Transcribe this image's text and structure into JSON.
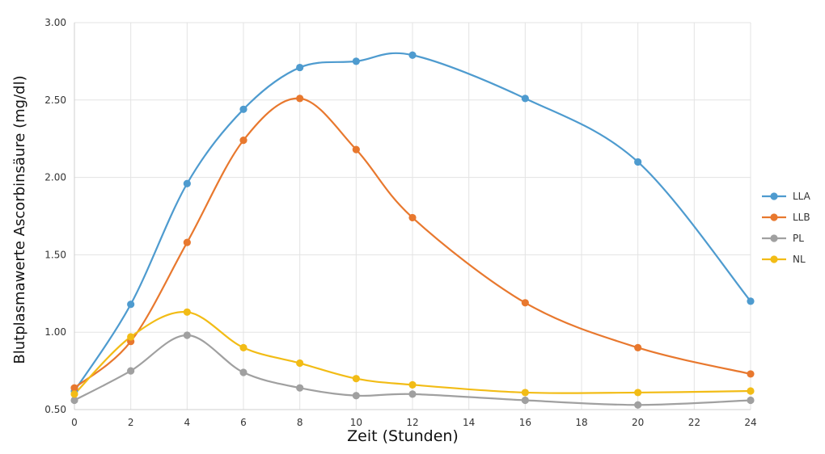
{
  "chart_data": {
    "type": "line",
    "title": "",
    "xlabel": "Zeit (Stunden)",
    "ylabel": "Blutplasmawerte Ascorbinsäure (mg/dl)",
    "xlim": [
      0,
      24
    ],
    "ylim": [
      0.5,
      3.0
    ],
    "x_ticks": [
      0,
      2,
      4,
      6,
      8,
      10,
      12,
      14,
      16,
      18,
      20,
      22,
      24
    ],
    "y_ticks": [
      "0.50",
      "1.00",
      "1.50",
      "2.00",
      "2.50",
      "3.00"
    ],
    "grid": "on",
    "smooth": true,
    "legend_position": "right",
    "series": [
      {
        "name": "LLA",
        "color": "#4E9BCF",
        "x": [
          0,
          2,
          4,
          6,
          8,
          10,
          12,
          16,
          20,
          24
        ],
        "values": [
          0.62,
          1.18,
          1.96,
          2.44,
          2.71,
          2.75,
          2.79,
          2.51,
          2.1,
          1.2
        ]
      },
      {
        "name": "LLB",
        "color": "#E8782E",
        "x": [
          0,
          2,
          4,
          6,
          8,
          10,
          12,
          16,
          20,
          24
        ],
        "values": [
          0.64,
          0.94,
          1.58,
          2.24,
          2.51,
          2.18,
          1.74,
          1.19,
          0.9,
          0.73
        ]
      },
      {
        "name": "PL",
        "color": "#A0A0A0",
        "x": [
          0,
          2,
          4,
          6,
          8,
          10,
          12,
          16,
          20,
          24
        ],
        "values": [
          0.56,
          0.75,
          0.98,
          0.74,
          0.64,
          0.59,
          0.6,
          0.56,
          0.53,
          0.56
        ]
      },
      {
        "name": "NL",
        "color": "#F2BC16",
        "x": [
          0,
          2,
          4,
          6,
          8,
          10,
          12,
          16,
          20,
          24
        ],
        "values": [
          0.6,
          0.97,
          1.13,
          0.9,
          0.8,
          0.7,
          0.66,
          0.61,
          0.61,
          0.62
        ]
      }
    ]
  }
}
